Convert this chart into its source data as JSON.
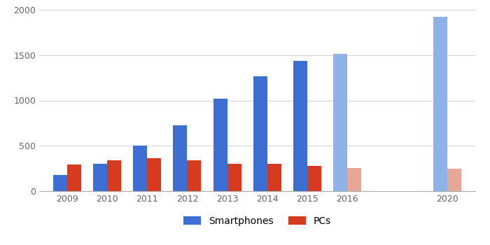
{
  "years": [
    "2009",
    "2010",
    "2011",
    "2012",
    "2013",
    "2014",
    "2015",
    "2016",
    "2020"
  ],
  "smartphones": [
    175,
    300,
    500,
    725,
    1020,
    1270,
    1440,
    1510,
    1920
  ],
  "pcs": [
    290,
    340,
    365,
    340,
    305,
    300,
    275,
    255,
    250
  ],
  "smartphone_colors": [
    "#3c6fd1",
    "#3c6fd1",
    "#3c6fd1",
    "#3c6fd1",
    "#3c6fd1",
    "#3c6fd1",
    "#3c6fd1",
    "#8fb3e8",
    "#8fb3e8"
  ],
  "pc_colors": [
    "#d63b1f",
    "#d63b1f",
    "#d63b1f",
    "#d63b1f",
    "#d63b1f",
    "#d63b1f",
    "#d63b1f",
    "#e8a898",
    "#e8a898"
  ],
  "ylim": [
    0,
    2000
  ],
  "yticks": [
    0,
    500,
    1000,
    1500,
    2000
  ],
  "legend_labels": [
    "Smartphones",
    "PCs"
  ],
  "background_color": "#ffffff",
  "grid_color": "#d0d0d0",
  "bar_width": 0.35,
  "x_positions": [
    0,
    1,
    2,
    3,
    4,
    5,
    6,
    7,
    9.5
  ]
}
